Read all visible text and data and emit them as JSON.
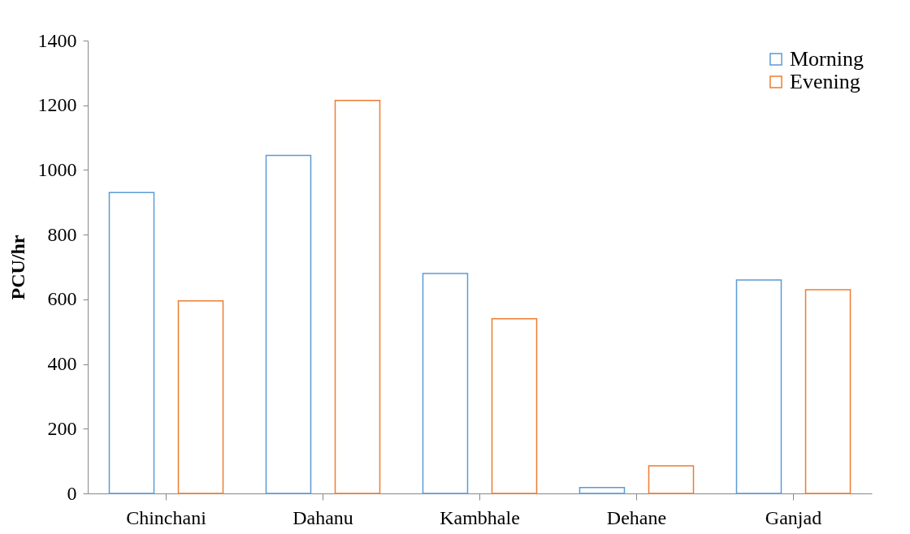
{
  "chart_data": {
    "type": "bar",
    "ylabel": "PCU/hr",
    "categories": [
      "Chinchani",
      "Dahanu",
      "Kambhale",
      "Dehane",
      "Ganjad"
    ],
    "series": [
      {
        "name": "Morning",
        "color": "#5b9bd5",
        "values": [
          930,
          1045,
          680,
          18,
          660
        ]
      },
      {
        "name": "Evening",
        "color": "#ed7d31",
        "values": [
          595,
          1215,
          540,
          85,
          630
        ]
      }
    ],
    "ylim": [
      0,
      1400
    ],
    "yticks": [
      0,
      200,
      400,
      600,
      800,
      1000,
      1200,
      1400
    ],
    "grid": false,
    "legend": "top right"
  }
}
